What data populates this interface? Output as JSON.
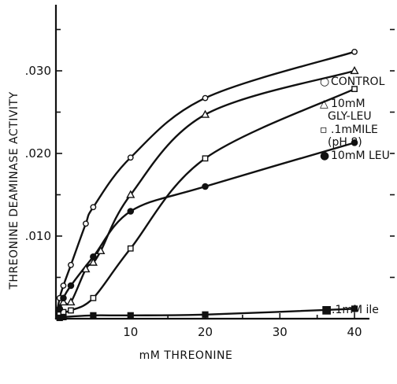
{
  "chart_data": {
    "type": "line",
    "title": "",
    "xlabel": "mM THREONINE",
    "ylabel": "THREONINE DEAMINASE ACTIVITY",
    "xlim": [
      0,
      42
    ],
    "ylim": [
      0,
      0.038
    ],
    "xticks": [
      10,
      20,
      30,
      40
    ],
    "xtick_labels": [
      "10",
      "20",
      "30",
      "40"
    ],
    "yticks": [
      0.01,
      0.02,
      0.03
    ],
    "ytick_labels": [
      ".010",
      ".020",
      ".030"
    ],
    "grid": false,
    "legend_position": "right",
    "series": [
      {
        "name": "CONTROL",
        "marker": "open-circle",
        "x": [
          0.5,
          1,
          2,
          4,
          5,
          10,
          20,
          40
        ],
        "y": [
          0.0025,
          0.004,
          0.0065,
          0.0115,
          0.0135,
          0.0195,
          0.0267,
          0.0323
        ]
      },
      {
        "name": "10mM GLY-LEU",
        "marker": "open-triangle",
        "x": [
          0.5,
          1,
          2,
          4,
          5,
          6,
          10,
          20,
          40
        ],
        "y": [
          0.0012,
          0.002,
          0.002,
          0.006,
          0.0068,
          0.0082,
          0.015,
          0.0247,
          0.03
        ]
      },
      {
        "name": ".1mMILE (pH 8)",
        "marker": "open-square",
        "x": [
          0.5,
          1,
          2,
          5,
          10,
          20,
          40
        ],
        "y": [
          0.0005,
          0.0008,
          0.001,
          0.0025,
          0.0085,
          0.0194,
          0.0278
        ]
      },
      {
        "name": "10mM LEU",
        "marker": "filled-circle",
        "x": [
          0.5,
          1,
          2,
          5,
          10,
          20,
          40
        ],
        "y": [
          0.0012,
          0.0025,
          0.004,
          0.0075,
          0.013,
          0.016,
          0.0213
        ]
      },
      {
        "name": ".1mM ile",
        "marker": "filled-square",
        "x": [
          0.5,
          1,
          5,
          10,
          20,
          40
        ],
        "y": [
          0.0001,
          0.0002,
          0.0004,
          0.0004,
          0.0005,
          0.0012
        ]
      }
    ],
    "legend": {
      "entries": [
        {
          "symbol": "○",
          "lines": [
            "CONTROL"
          ]
        },
        {
          "symbol": "△",
          "lines": [
            "10mM",
            "GLY-LEU"
          ]
        },
        {
          "symbol": "▫",
          "lines": [
            ".1mMILE",
            "(pH 8)"
          ]
        },
        {
          "symbol": "●",
          "lines": [
            "10mM LEU"
          ]
        }
      ],
      "bottom_entry": {
        "symbol": "■",
        "lines": [
          ".1mM ile"
        ]
      }
    }
  }
}
